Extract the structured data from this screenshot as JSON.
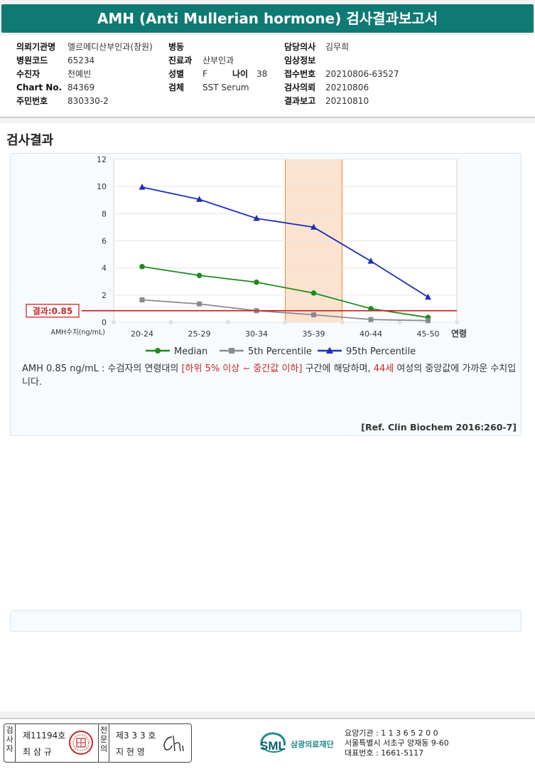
{
  "header": {
    "title": "AMH (Anti Mullerian hormone) 검사결과보고서"
  },
  "info": {
    "col1": [
      {
        "label": "의뢰기관명",
        "value": "엘르메디산부인과(창원)"
      },
      {
        "label": "병원코드",
        "value": "65234"
      },
      {
        "label": "수진자",
        "value": "천예빈"
      },
      {
        "label": "Chart No.",
        "value": "84369"
      },
      {
        "label": "주민번호",
        "value": "830330-2"
      }
    ],
    "col2": [
      {
        "label": "병동",
        "value": ""
      },
      {
        "label": "진료과",
        "value": "산부인과"
      },
      {
        "label": "성별",
        "value": "F"
      },
      {
        "label": "검체",
        "value": "SST Serum"
      }
    ],
    "age": {
      "label": "나이",
      "value": "38"
    },
    "col3": [
      {
        "label": "담당의사",
        "value": "김무희"
      },
      {
        "label": "임상정보",
        "value": ""
      },
      {
        "label": "접수번호",
        "value": "20210806-63527"
      },
      {
        "label": "검사의뢰",
        "value": "20210806"
      },
      {
        "label": "결과보고",
        "value": "20210810"
      }
    ]
  },
  "section_title": "검사결과",
  "chart_data": {
    "type": "line",
    "categories": [
      "20-24",
      "25-29",
      "30-34",
      "35-39",
      "40-44",
      "45-50"
    ],
    "series": [
      {
        "name": "Median",
        "color": "#1e8a1e",
        "marker": "circle",
        "values": [
          4.1,
          3.45,
          2.95,
          2.15,
          1.0,
          0.35
        ]
      },
      {
        "name": "5th Percentile",
        "color": "#8a8a93",
        "marker": "square",
        "values": [
          1.65,
          1.35,
          0.85,
          0.55,
          0.2,
          0.12
        ]
      },
      {
        "name": "95th Percentile",
        "color": "#1f2fb5",
        "marker": "triangle",
        "values": [
          9.95,
          9.05,
          7.65,
          7.0,
          4.5,
          1.85
        ]
      }
    ],
    "ylim": [
      0,
      12
    ],
    "yticks": [
      0,
      2,
      4,
      6,
      8,
      10,
      12
    ],
    "ylabel": "AMH수치(ng/mL)",
    "xlabel": "연령",
    "result_value": 0.85,
    "result_label": "결과:0.85",
    "highlight_category": "35-39",
    "grid": true,
    "legend": "bottom"
  },
  "description": {
    "part1": "AMH  0.85 ng/mL : 수검자의 연령대의 ",
    "range": "[하위 5% 이상 ~ 중간값 이하]",
    "part2": "  구간에 해당하며, ",
    "age": "44세",
    "part3": " 여성의 중앙값에 가까운 수치입니다."
  },
  "reference": "[Ref. Clin Biochem 2016:260-7]",
  "signature": {
    "examiner_label": "검사자",
    "examiner_no": "제11194호",
    "examiner_name": "최 삼 규",
    "specialist_label": "전문의",
    "specialist_no": "제3 3 3 호",
    "specialist_name": "지 현 영"
  },
  "footer": {
    "logo_text": "SML",
    "org_name": "삼광의료재단",
    "institution": "요양기관 : 1 1 3 6 5 2 0 0",
    "address": "서울특별시 서초구 양재동 9-60",
    "phone": "대표번호 : 1661-5117"
  }
}
